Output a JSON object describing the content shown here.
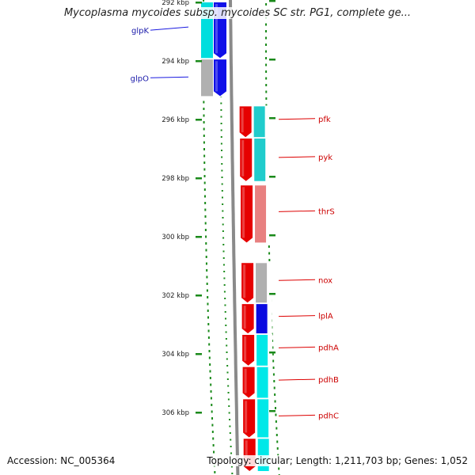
{
  "title": "Mycoplasma mycoides subsp. mycoides SC str. PG1, complete ge...",
  "accession": "Accession: NC_005364",
  "topology": "Topology: circular; Length: 1,211,703 bp; Genes: 1,052",
  "ticks": [
    {
      "label": "292 kbp",
      "kbp": 292
    },
    {
      "label": "294 kbp",
      "kbp": 294
    },
    {
      "label": "296 kbp",
      "kbp": 296
    },
    {
      "label": "298 kbp",
      "kbp": 298
    },
    {
      "label": "300 kbp",
      "kbp": 300
    },
    {
      "label": "302 kbp",
      "kbp": 302
    },
    {
      "label": "304 kbp",
      "kbp": 304
    },
    {
      "label": "306 kbp",
      "kbp": 306
    }
  ],
  "genes": [
    {
      "name": "glpK",
      "start_kbp": 292.0,
      "end_kbp": 293.9,
      "strand": "+",
      "fill": "#1010e8",
      "cog": "#00dede",
      "label_color": "#1a1aaa"
    },
    {
      "name": "glpO",
      "start_kbp": 293.95,
      "end_kbp": 295.2,
      "strand": "+",
      "fill": "#1010e8",
      "cog": "#b0b0b0",
      "label_color": "#1a1aaa"
    },
    {
      "name": "pfk",
      "start_kbp": 295.55,
      "end_kbp": 296.6,
      "strand": "+",
      "fill": "#e60000",
      "cog": "#20cccc",
      "label_color": "#cc0000"
    },
    {
      "name": "pyk",
      "start_kbp": 296.65,
      "end_kbp": 298.1,
      "strand": "+",
      "fill": "#e60000",
      "cog": "#20cccc",
      "label_color": "#cc0000"
    },
    {
      "name": "thrS",
      "start_kbp": 298.25,
      "end_kbp": 300.2,
      "strand": "+",
      "fill": "#e60000",
      "cog": "#e88080",
      "label_color": "#cc0000"
    },
    {
      "name": "nox",
      "start_kbp": 300.9,
      "end_kbp": 302.25,
      "strand": "+",
      "fill": "#e60000",
      "cog": "#b0b0b0",
      "label_color": "#cc0000"
    },
    {
      "name": "lplA",
      "start_kbp": 302.3,
      "end_kbp": 303.3,
      "strand": "+",
      "fill": "#e60000",
      "cog": "#0a0ae0",
      "label_color": "#cc0000"
    },
    {
      "name": "pdhA",
      "start_kbp": 303.35,
      "end_kbp": 304.4,
      "strand": "+",
      "fill": "#e60000",
      "cog": "#00e8e8",
      "label_color": "#cc0000"
    },
    {
      "name": "pdhB",
      "start_kbp": 304.45,
      "end_kbp": 305.5,
      "strand": "+",
      "fill": "#e60000",
      "cog": "#00e8e8",
      "label_color": "#cc0000"
    },
    {
      "name": "pdhC",
      "start_kbp": 305.55,
      "end_kbp": 306.85,
      "strand": "+",
      "fill": "#e60000",
      "cog": "#00e8e8",
      "label_color": "#cc0000"
    },
    {
      "name": "",
      "start_kbp": 306.9,
      "end_kbp": 308.0,
      "strand": "+",
      "fill": "#e60000",
      "cog": "#00e8e8",
      "label_color": "#cc0000"
    }
  ],
  "colors": {
    "backbone": "#8a8a8a",
    "tick_green": "#1a8a1a",
    "white_track": "#ffffff"
  }
}
